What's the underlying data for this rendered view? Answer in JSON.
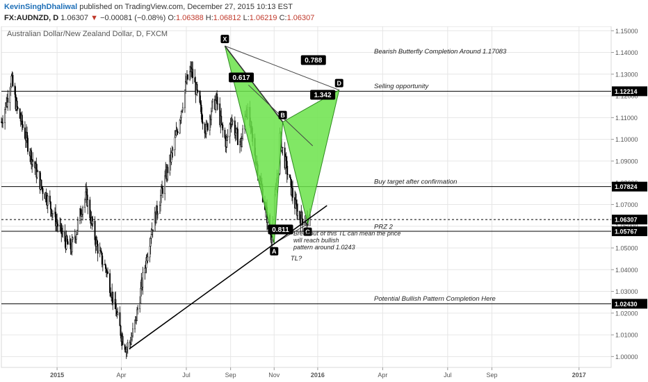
{
  "header": {
    "publisher": "KevinSinghDhaliwal",
    "published_text": "published on TradingView.com, December 27, 2015 10:13 EST",
    "symbol": "FX:AUDNZD, D",
    "last": "1.06307",
    "change_arrow": "▼",
    "change": "−0.00081 (−0.08%)",
    "o_label": "O:",
    "o_value": "1.06388",
    "h_label": "H:",
    "h_value": "1.06812",
    "l_label": "L:",
    "l_value": "1.06219",
    "c_label": "C:",
    "c_value": "1.06307"
  },
  "chart_data": {
    "type": "candlestick",
    "title": "Australian Dollar/New Zealand Dollar, D, FXCM",
    "ylim": [
      0.995,
      1.152
    ],
    "y_ticks": [
      "1.15000",
      "1.14000",
      "1.13000",
      "1.12000",
      "1.11000",
      "1.10000",
      "1.09000",
      "1.08000",
      "1.07000",
      "1.06000",
      "1.05000",
      "1.04000",
      "1.03000",
      "1.02000",
      "1.01000",
      "1.00000"
    ],
    "x_ticks": [
      "2015",
      "Apr",
      "Jul",
      "Sep",
      "Nov",
      "2016",
      "Apr",
      "Jul",
      "Sep",
      "2017"
    ],
    "x_tick_dates": [
      "2015-01-01",
      "2015-04-01",
      "2015-07-01",
      "2015-09-01",
      "2015-11-01",
      "2016-01-01",
      "2016-04-01",
      "2016-07-01",
      "2016-09-01",
      "2017-01-01"
    ],
    "x_range": [
      "2014-10-15",
      "2017-02-15"
    ],
    "price_path": [
      {
        "date": "2014-10-15",
        "price": 1.108
      },
      {
        "date": "2014-10-22",
        "price": 1.117
      },
      {
        "date": "2014-10-29",
        "price": 1.128
      },
      {
        "date": "2014-11-05",
        "price": 1.115
      },
      {
        "date": "2014-11-12",
        "price": 1.108
      },
      {
        "date": "2014-11-19",
        "price": 1.1
      },
      {
        "date": "2014-11-26",
        "price": 1.092
      },
      {
        "date": "2014-12-03",
        "price": 1.085
      },
      {
        "date": "2014-12-10",
        "price": 1.078
      },
      {
        "date": "2014-12-17",
        "price": 1.074
      },
      {
        "date": "2014-12-24",
        "price": 1.068
      },
      {
        "date": "2014-12-31",
        "price": 1.062
      },
      {
        "date": "2015-01-07",
        "price": 1.057
      },
      {
        "date": "2015-01-14",
        "price": 1.052
      },
      {
        "date": "2015-01-21",
        "price": 1.05
      },
      {
        "date": "2015-01-28",
        "price": 1.058
      },
      {
        "date": "2015-02-04",
        "price": 1.068
      },
      {
        "date": "2015-02-11",
        "price": 1.074
      },
      {
        "date": "2015-02-18",
        "price": 1.062
      },
      {
        "date": "2015-02-25",
        "price": 1.052
      },
      {
        "date": "2015-03-04",
        "price": 1.045
      },
      {
        "date": "2015-03-11",
        "price": 1.04
      },
      {
        "date": "2015-03-18",
        "price": 1.03
      },
      {
        "date": "2015-03-25",
        "price": 1.02
      },
      {
        "date": "2015-04-01",
        "price": 1.01
      },
      {
        "date": "2015-04-08",
        "price": 1.004
      },
      {
        "date": "2015-04-15",
        "price": 1.008
      },
      {
        "date": "2015-04-22",
        "price": 1.018
      },
      {
        "date": "2015-04-29",
        "price": 1.032
      },
      {
        "date": "2015-05-06",
        "price": 1.045
      },
      {
        "date": "2015-05-13",
        "price": 1.058
      },
      {
        "date": "2015-05-20",
        "price": 1.066
      },
      {
        "date": "2015-05-27",
        "price": 1.075
      },
      {
        "date": "2015-06-03",
        "price": 1.084
      },
      {
        "date": "2015-06-10",
        "price": 1.092
      },
      {
        "date": "2015-06-17",
        "price": 1.102
      },
      {
        "date": "2015-06-24",
        "price": 1.114
      },
      {
        "date": "2015-07-01",
        "price": 1.126
      },
      {
        "date": "2015-07-08",
        "price": 1.132
      },
      {
        "date": "2015-07-15",
        "price": 1.122
      },
      {
        "date": "2015-07-22",
        "price": 1.112
      },
      {
        "date": "2015-07-29",
        "price": 1.104
      },
      {
        "date": "2015-08-05",
        "price": 1.114
      },
      {
        "date": "2015-08-12",
        "price": 1.118
      },
      {
        "date": "2015-08-19",
        "price": 1.106
      },
      {
        "date": "2015-08-26",
        "price": 1.098
      },
      {
        "date": "2015-09-02",
        "price": 1.11
      },
      {
        "date": "2015-09-09",
        "price": 1.102
      },
      {
        "date": "2015-09-16",
        "price": 1.098
      },
      {
        "date": "2015-09-23",
        "price": 1.115
      },
      {
        "date": "2015-09-30",
        "price": 1.103
      },
      {
        "date": "2015-10-07",
        "price": 1.09
      },
      {
        "date": "2015-10-14",
        "price": 1.078
      },
      {
        "date": "2015-10-21",
        "price": 1.066
      },
      {
        "date": "2015-10-28",
        "price": 1.055
      },
      {
        "date": "2015-11-04",
        "price": 1.078
      },
      {
        "date": "2015-11-09",
        "price": 1.101
      },
      {
        "date": "2015-11-16",
        "price": 1.09
      },
      {
        "date": "2015-11-23",
        "price": 1.08
      },
      {
        "date": "2015-11-30",
        "price": 1.07
      },
      {
        "date": "2015-12-07",
        "price": 1.064
      },
      {
        "date": "2015-12-14",
        "price": 1.063
      },
      {
        "date": "2015-12-21",
        "price": 1.063
      }
    ],
    "pattern_points": [
      {
        "label": "X",
        "date": "2015-08-24",
        "price": 1.143
      },
      {
        "label": "A",
        "date": "2015-11-01",
        "price": 1.052
      },
      {
        "label": "B",
        "date": "2015-11-13",
        "price": 1.108
      },
      {
        "label": "C",
        "date": "2015-12-18",
        "price": 1.061
      },
      {
        "label": "D",
        "date": "2016-01-31",
        "price": 1.1227
      }
    ],
    "ratios": [
      {
        "label": "0.788",
        "date": "2015-12-26",
        "price": 1.1365
      },
      {
        "label": "0.617",
        "date": "2015-09-16",
        "price": 1.1285
      },
      {
        "label": "1.342",
        "date": "2016-01-08",
        "price": 1.1205
      },
      {
        "label": "0.811",
        "date": "2015-11-10",
        "price": 1.0585
      }
    ],
    "retracement_line": {
      "from_date": "2015-09-26",
      "from_price": 1.125,
      "to_date": "2015-12-25",
      "to_price": 1.097
    },
    "horizontal_levels": [
      {
        "price": 1.12214,
        "label": "1.12214",
        "style": "solid"
      },
      {
        "price": 1.07824,
        "label": "1.07824",
        "style": "solid"
      },
      {
        "price": 1.06307,
        "label": "1.06307",
        "style": "dashed"
      },
      {
        "price": 1.05767,
        "label": "1.05767",
        "style": "solid"
      },
      {
        "price": 1.0243,
        "label": "1.02430",
        "style": "solid"
      }
    ],
    "trendline": {
      "from_date": "2015-04-12",
      "from_price": 1.0035,
      "to_date": "2016-01-14",
      "to_price": 1.0695
    },
    "annotations": [
      {
        "text": "Bearish Butterfly Completion Around 1.17083",
        "date": "2016-03-20",
        "price": 1.1395
      },
      {
        "text": "Selling opportunity",
        "date": "2016-03-20",
        "price": 1.1235
      },
      {
        "text": "Buy target after confirmation",
        "date": "2016-03-20",
        "price": 1.0795
      },
      {
        "text": "PRZ 2",
        "date": "2016-03-20",
        "price": 1.0588
      },
      {
        "text": "Potential Bullish Pattern Completion Here",
        "date": "2016-03-20",
        "price": 1.0257
      }
    ],
    "note_lines": [
      "Breakout of this TL can mean the price",
      "will reach bullish",
      "pattern around 1.0243"
    ],
    "note_anchor": {
      "date": "2015-11-28",
      "price": 1.0557
    },
    "tl_label": {
      "text": "TL?",
      "date": "2015-11-24",
      "price": 1.0442
    }
  },
  "colors": {
    "pattern_fill": "#6be34a",
    "candle": "#000000",
    "grid": "#e6e6e6",
    "label_bg": "#000000",
    "label_text": "#ffffff"
  }
}
